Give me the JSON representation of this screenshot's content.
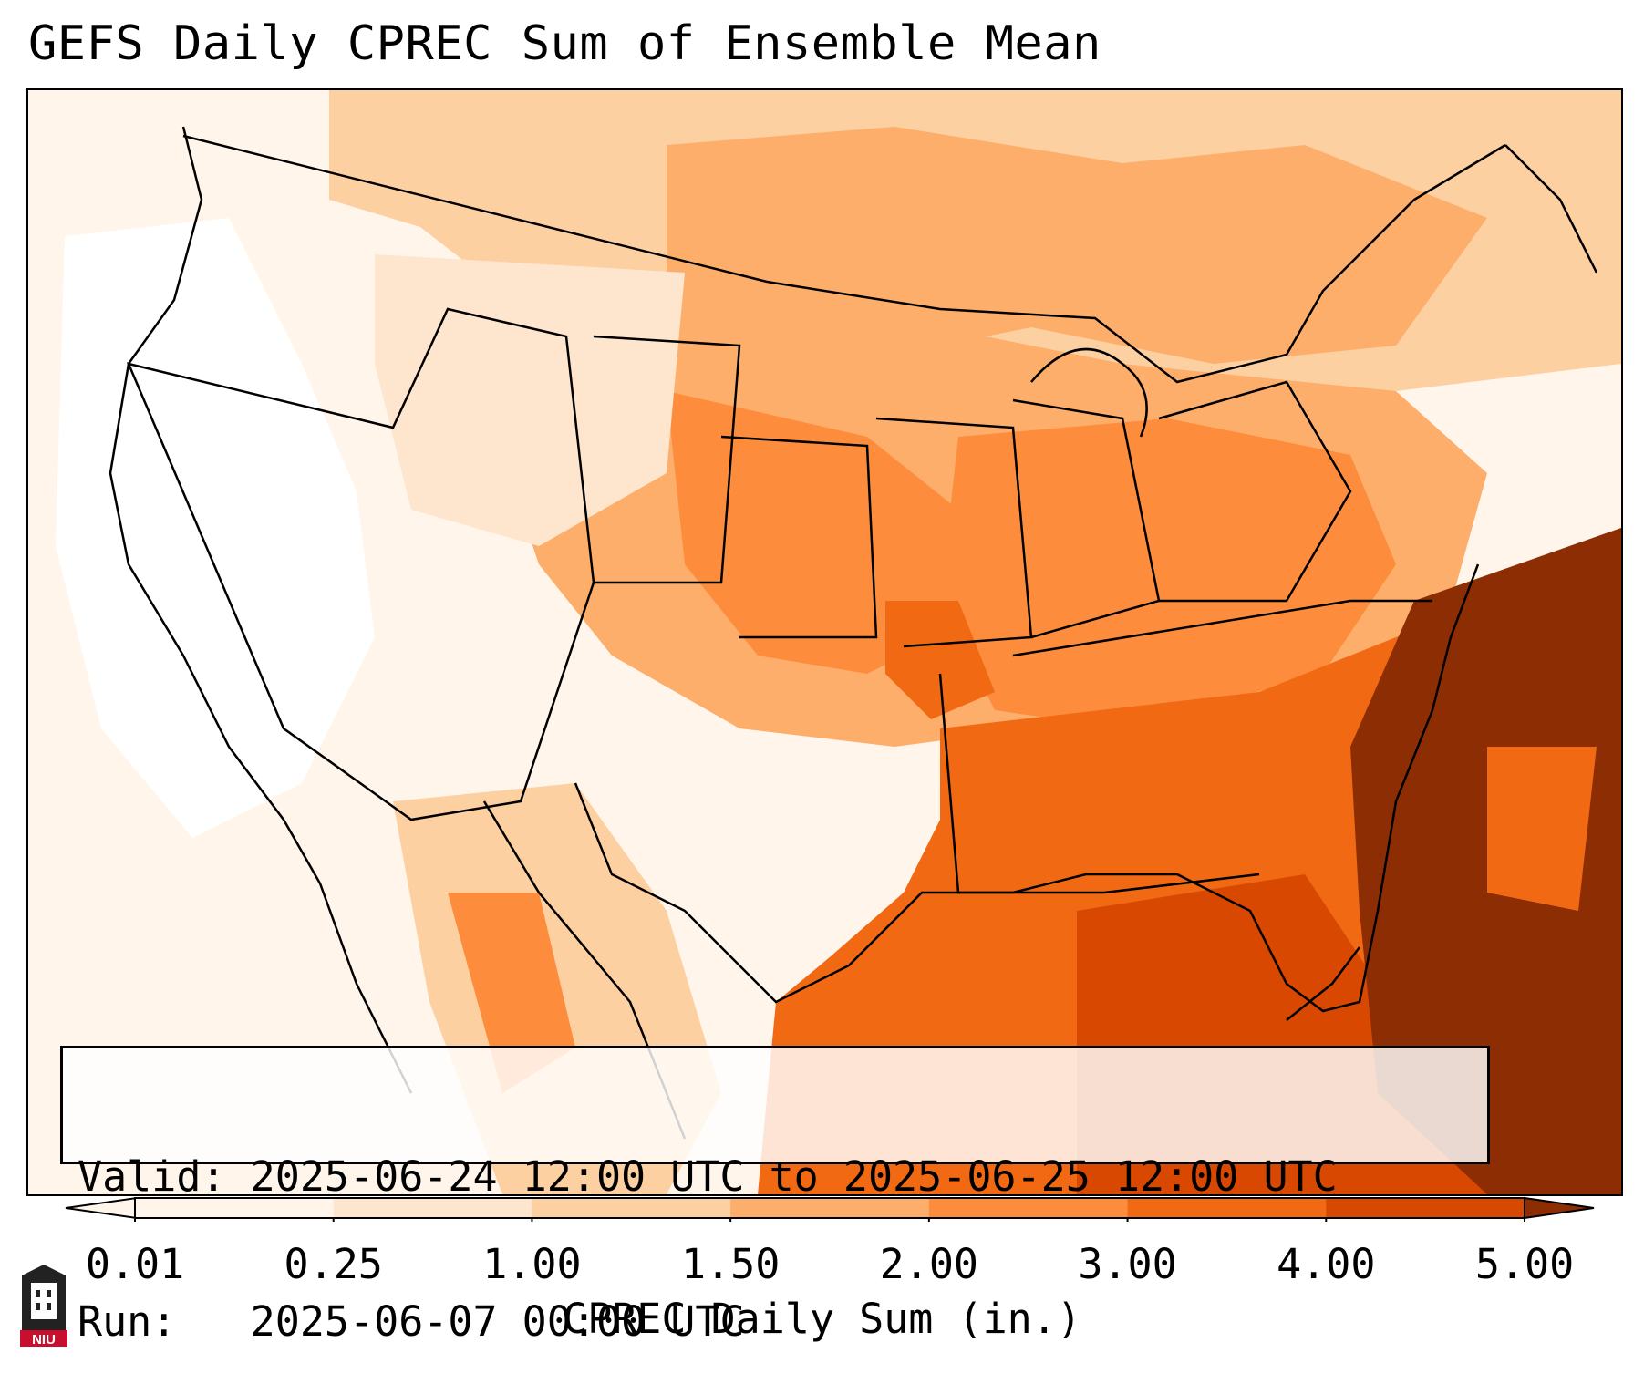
{
  "title": "GEFS Daily CPREC Sum of Ensemble Mean",
  "info": {
    "valid_label": "Valid:",
    "valid_value": "2025-06-24 12:00 UTC to 2025-06-25 12:00 UTC",
    "run_label": "Run:",
    "run_value": "2025-06-07 00:00 UTC"
  },
  "colorbar": {
    "label": "CPREC Daily Sum (in.)",
    "ticks": [
      "0.01",
      "0.25",
      "1.00",
      "1.50",
      "2.00",
      "3.00",
      "4.00",
      "5.00"
    ],
    "colors": [
      "#fff5eb",
      "#fee6ce",
      "#fdd0a2",
      "#fdae6b",
      "#fd8d3c",
      "#f16913",
      "#d94801",
      "#8c2d04"
    ],
    "extend": "both"
  },
  "logo": {
    "text": "NIU"
  },
  "colors": {
    "frame": "#000000",
    "low": "#fff5eb",
    "high": "#8c2d04"
  }
}
